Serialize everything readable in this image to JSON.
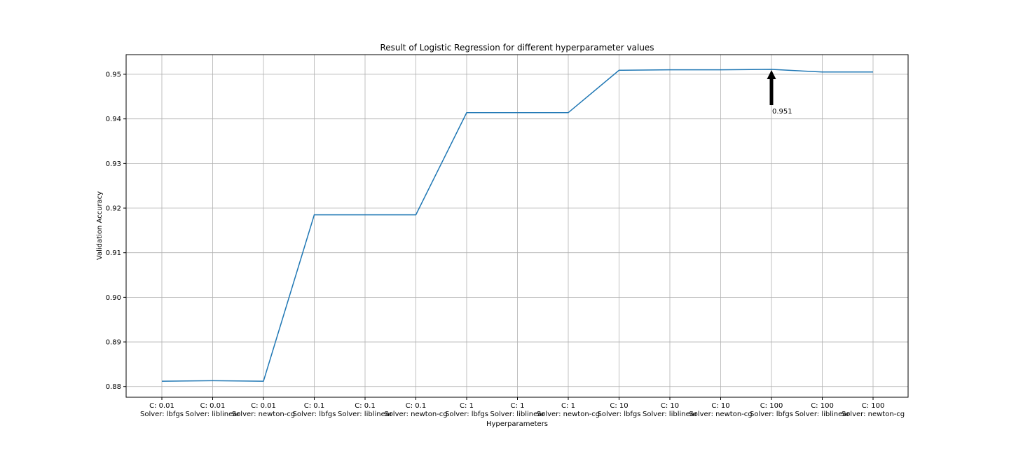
{
  "chart_data": {
    "type": "line",
    "title": "Result of Logistic Regression for different hyperparameter values",
    "xlabel": "Hyperparameters",
    "ylabel": "Validation Accuracy",
    "categories": [
      {
        "c": "C: 0.01",
        "solver": "Solver: lbfgs"
      },
      {
        "c": "C: 0.01",
        "solver": "Solver: liblinear"
      },
      {
        "c": "C: 0.01",
        "solver": "Solver: newton-cg"
      },
      {
        "c": "C: 0.1",
        "solver": "Solver: lbfgs"
      },
      {
        "c": "C: 0.1",
        "solver": "Solver: liblinear"
      },
      {
        "c": "C: 0.1",
        "solver": "Solver: newton-cg"
      },
      {
        "c": "C: 1",
        "solver": "Solver: lbfgs"
      },
      {
        "c": "C: 1",
        "solver": "Solver: liblinear"
      },
      {
        "c": "C: 1",
        "solver": "Solver: newton-cg"
      },
      {
        "c": "C: 10",
        "solver": "Solver: lbfgs"
      },
      {
        "c": "C: 10",
        "solver": "Solver: liblinear"
      },
      {
        "c": "C: 10",
        "solver": "Solver: newton-cg"
      },
      {
        "c": "C: 100",
        "solver": "Solver: lbfgs"
      },
      {
        "c": "C: 100",
        "solver": "Solver: liblinear"
      },
      {
        "c": "C: 100",
        "solver": "Solver: newton-cg"
      }
    ],
    "values": [
      0.8812,
      0.8813,
      0.8812,
      0.9185,
      0.9185,
      0.9185,
      0.9414,
      0.9414,
      0.9414,
      0.9509,
      0.951,
      0.951,
      0.9511,
      0.9505,
      0.9505
    ],
    "ylim": [
      0.8776,
      0.9544
    ],
    "yticks": [
      "0.88",
      "0.89",
      "0.90",
      "0.91",
      "0.92",
      "0.93",
      "0.94",
      "0.95"
    ],
    "grid": true,
    "line_color": "#1f77b4",
    "annotation": {
      "text": "0.951",
      "index": 12,
      "value": 0.9511
    }
  }
}
